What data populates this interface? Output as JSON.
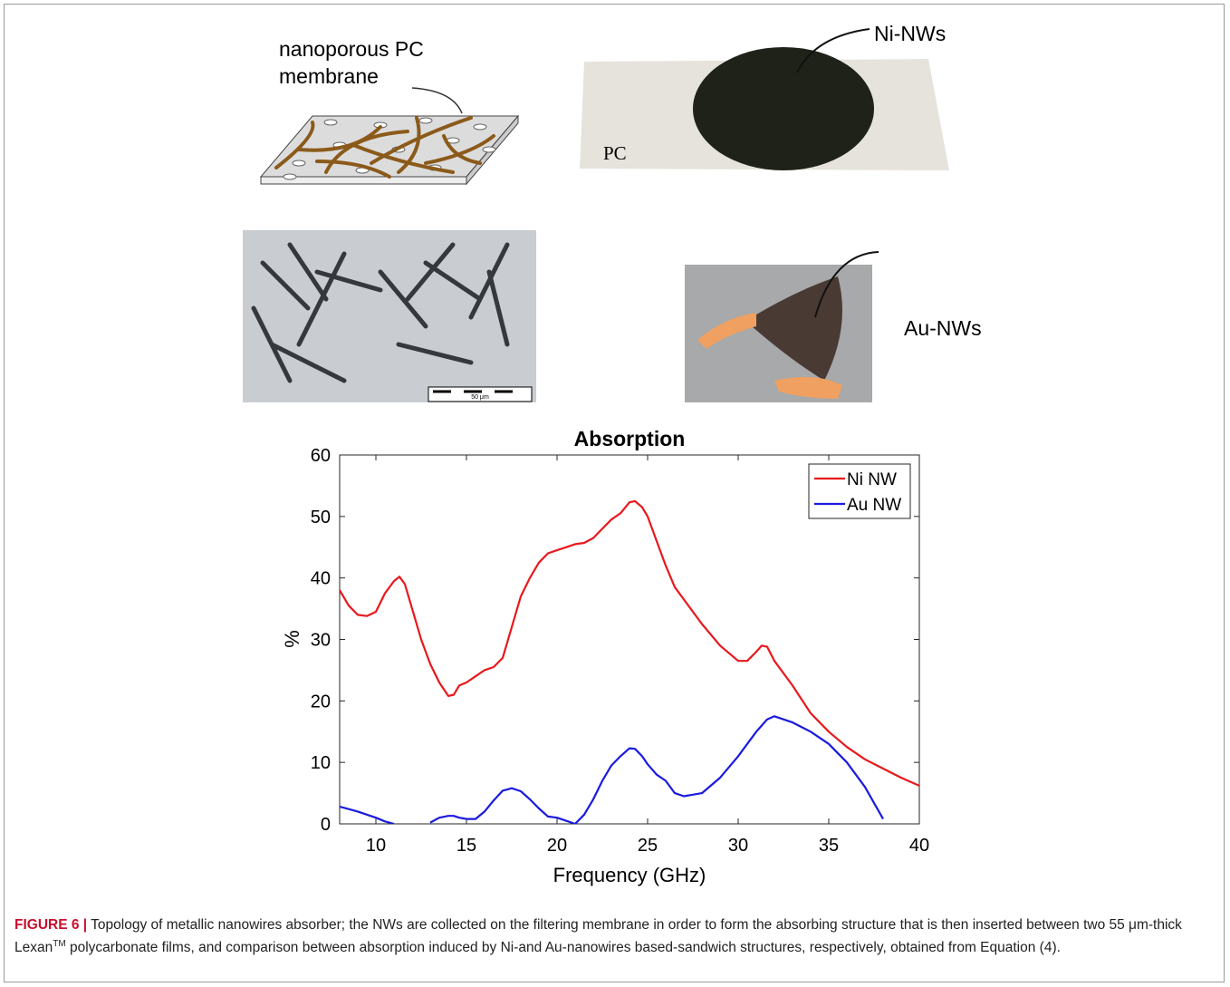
{
  "panels": {
    "membrane_label": [
      "nanoporous PC",
      "membrane"
    ],
    "ni_label": "Ni-NWs",
    "pc_label": "PC",
    "scale_label": "50 μm",
    "au_label": "Au-NWs"
  },
  "chart_data": {
    "type": "line",
    "title": "Absorption",
    "xlabel": "Frequency (GHz)",
    "ylabel": "%",
    "x": [
      8,
      8.5,
      9,
      9.5,
      10,
      10.5,
      11,
      11.3,
      11.6,
      12,
      12.5,
      13,
      13.5,
      14,
      14.3,
      14.6,
      15,
      15.5,
      16,
      16.5,
      17,
      17.5,
      18,
      18.5,
      19,
      19.5,
      20,
      20.5,
      21,
      21.5,
      22,
      22.5,
      23,
      23.5,
      24,
      24.3,
      24.7,
      25,
      25.5,
      26,
      26.5,
      27,
      28,
      29,
      30,
      30.5,
      31,
      31.3,
      31.6,
      32,
      33,
      34,
      35,
      36,
      37,
      38,
      39,
      40
    ],
    "series": [
      {
        "name": "Ni NW",
        "color": "#e8181c",
        "values": [
          38,
          35.5,
          34,
          33.8,
          34.5,
          37.5,
          39.5,
          40.2,
          39,
          35,
          30,
          26,
          23,
          20.8,
          21,
          22.5,
          23,
          24,
          25,
          25.5,
          27,
          32,
          37,
          40,
          42.5,
          44,
          44.5,
          45,
          45.5,
          45.7,
          46.5,
          48,
          49.5,
          50.5,
          52.3,
          52.5,
          51.5,
          50,
          46,
          42,
          38.5,
          36.5,
          32.5,
          29,
          26.5,
          26.5,
          28,
          29,
          28.8,
          26.5,
          22.5,
          18,
          15,
          12.5,
          10.5,
          9,
          7.5,
          6.2
        ]
      },
      {
        "name": "Au NW",
        "color": "#1a1adf",
        "values": [
          2.8,
          2.4,
          2,
          1.5,
          1,
          0.4,
          0,
          null,
          null,
          null,
          null,
          0.2,
          1,
          1.3,
          1.3,
          1,
          0.8,
          0.8,
          2,
          3.8,
          5.4,
          5.8,
          5.3,
          4,
          2.5,
          1.2,
          1,
          0.5,
          0,
          1.5,
          4,
          7,
          9.5,
          11,
          12.3,
          12.2,
          11,
          9.7,
          8,
          7,
          5,
          4.5,
          5,
          7.5,
          11,
          13,
          15,
          16,
          17,
          17.5,
          16.5,
          15,
          13,
          10,
          6,
          0.8,
          null,
          null
        ]
      }
    ],
    "xlim": [
      8,
      40
    ],
    "ylim": [
      0,
      60
    ],
    "xticks": [
      10,
      15,
      20,
      25,
      30,
      35,
      40
    ],
    "yticks": [
      0,
      10,
      20,
      30,
      40,
      50,
      60
    ],
    "legend": "top-right",
    "grid": false
  },
  "caption": {
    "label": "FIGURE 6 |",
    "text": "Topology of metallic nanowires absorber; the NWs are collected on the filtering membrane in order to form the absorbing structure that is then inserted between two 55 μm-thick Lexan",
    "superscript": "TM",
    "text_end": " polycarbonate films, and comparison between absorption induced by Ni-and Au-nanowires based-sandwich structures, respectively, obtained from Equation (4)."
  }
}
